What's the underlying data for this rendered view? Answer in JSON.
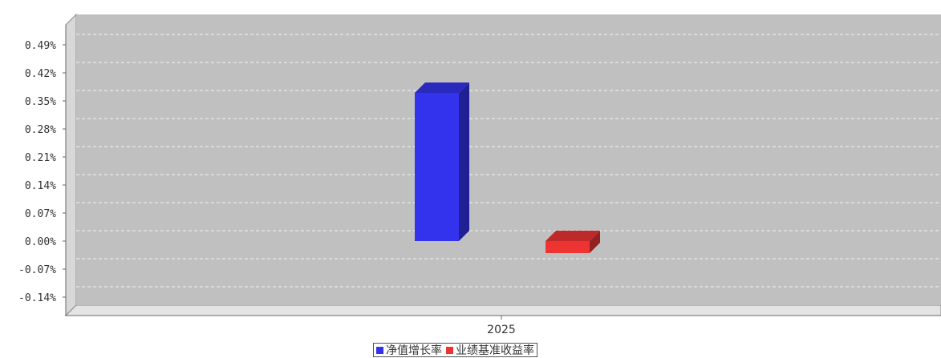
{
  "chart_data": {
    "type": "bar",
    "categories": [
      "2025"
    ],
    "series": [
      {
        "name": "净值增长率",
        "values": [
          0.37
        ],
        "color": "#3333ee"
      },
      {
        "name": "业绩基准收益率",
        "values": [
          -0.03
        ],
        "color": "#ee3333"
      }
    ],
    "yticks": [
      "0.49%",
      "0.42%",
      "0.35%",
      "0.28%",
      "0.21%",
      "0.14%",
      "0.07%",
      "0.00%",
      "-0.07%",
      "-0.14%"
    ],
    "ytick_values": [
      0.49,
      0.42,
      0.35,
      0.28,
      0.21,
      0.14,
      0.07,
      0.0,
      -0.07,
      -0.14
    ],
    "ylim": [
      -0.16,
      0.55
    ],
    "grid": true,
    "style": "3d",
    "legend_position": "bottom-center",
    "plot_background": "#c0c0c0"
  }
}
